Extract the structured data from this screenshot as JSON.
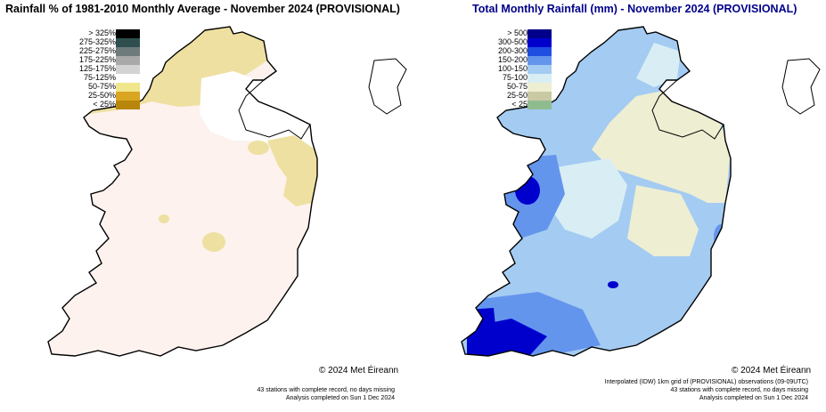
{
  "left_panel": {
    "title": "Rainfall % of  1981-2010  Monthly Average - November 2024  (PROVISIONAL)",
    "legend": [
      {
        "label": "> 325%",
        "color": "#000000"
      },
      {
        "label": "275-325%",
        "color": "#2f4f4f"
      },
      {
        "label": "225-275%",
        "color": "#6e7b7b"
      },
      {
        "label": "175-225%",
        "color": "#a9a9a9"
      },
      {
        "label": "125-175%",
        "color": "#d3d3d3"
      },
      {
        "label": "75-125%",
        "color": "#ffffff"
      },
      {
        "label": "50-75%",
        "color": "#f0e68c"
      },
      {
        "label": "25-50%",
        "color": "#daa520"
      },
      {
        "label": "< 25%",
        "color": "#b8860b"
      }
    ],
    "copyright": "© 2024 Met Éireann",
    "footnotes": [
      "43 stations with complete record, no days missing",
      "Analysis completed on Sun  1 Dec 2024"
    ]
  },
  "right_panel": {
    "title": "Total Monthly Rainfall (mm) - November 2024  (PROVISIONAL)",
    "legend": [
      {
        "label": "> 500",
        "color": "#00008b"
      },
      {
        "label": "300-500",
        "color": "#0000cd"
      },
      {
        "label": "200-300",
        "color": "#1e4fe0"
      },
      {
        "label": "150-200",
        "color": "#6495ed"
      },
      {
        "label": "100-150",
        "color": "#a4cbf2"
      },
      {
        "label": "75-100",
        "color": "#d8eef4"
      },
      {
        "label": "50-75",
        "color": "#eeeed2"
      },
      {
        "label": "25-50",
        "color": "#c9c9a3"
      },
      {
        "label": "< 25",
        "color": "#8fbc8f"
      }
    ],
    "copyright": "© 2024 Met Éireann",
    "footnotes": [
      "Interpolated (IDW) 1km grid of  (PROVISIONAL) observations (09-09UTC)",
      "43 stations with complete record, no days missing",
      "Analysis completed on Sun  1 Dec 2024"
    ]
  }
}
